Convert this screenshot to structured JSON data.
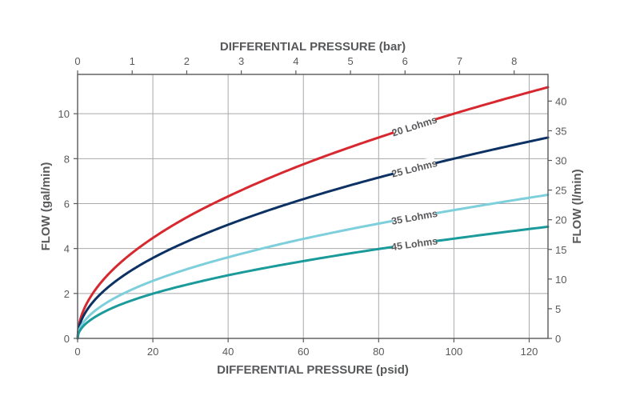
{
  "chart_data": {
    "type": "line",
    "x_bottom": {
      "label": "DIFFERENTIAL PRESSURE (psid)",
      "ticks": [
        0,
        20,
        40,
        60,
        80,
        100,
        120
      ],
      "range": [
        0,
        125
      ]
    },
    "x_top": {
      "label": "DIFFERENTIAL PRESSURE (bar)",
      "ticks": [
        0,
        1,
        2,
        3,
        4,
        5,
        6,
        7,
        8
      ],
      "range": [
        0,
        8.62
      ]
    },
    "y_left": {
      "label": "FLOW (gal/min)",
      "ticks": [
        0,
        2,
        4,
        6,
        8,
        10
      ],
      "range": [
        0,
        11.75
      ]
    },
    "y_right": {
      "label": "FLOW (l/min)",
      "ticks": [
        0,
        5,
        10,
        15,
        20,
        25,
        30,
        35,
        40
      ],
      "range": [
        0,
        44.5
      ]
    },
    "grid": true,
    "series": [
      {
        "name": "20 Lohms",
        "color": "#d7282f",
        "x": [
          0,
          5,
          10,
          20,
          30,
          40,
          60,
          80,
          100,
          125
        ],
        "y": [
          0,
          2.23,
          3.16,
          4.47,
          5.48,
          6.32,
          7.75,
          8.94,
          10.0,
          11.18
        ]
      },
      {
        "name": "25 Lohms",
        "color": "#0c3264",
        "x": [
          0,
          5,
          10,
          20,
          30,
          40,
          60,
          80,
          100,
          125
        ],
        "y": [
          0,
          1.79,
          2.53,
          3.58,
          4.38,
          5.06,
          6.2,
          7.16,
          8.0,
          8.94
        ]
      },
      {
        "name": "35 Lohms",
        "color": "#7ecfdc",
        "x": [
          0,
          5,
          10,
          20,
          30,
          40,
          60,
          80,
          100,
          125
        ],
        "y": [
          0,
          1.28,
          1.81,
          2.56,
          3.13,
          3.61,
          4.43,
          5.11,
          5.71,
          6.39
        ]
      },
      {
        "name": "45 Lohms",
        "color": "#1a9a9a",
        "x": [
          0,
          5,
          10,
          20,
          30,
          40,
          60,
          80,
          100,
          125
        ],
        "y": [
          0,
          0.99,
          1.41,
          1.99,
          2.43,
          2.81,
          3.44,
          3.98,
          4.44,
          4.97
        ]
      }
    ]
  }
}
